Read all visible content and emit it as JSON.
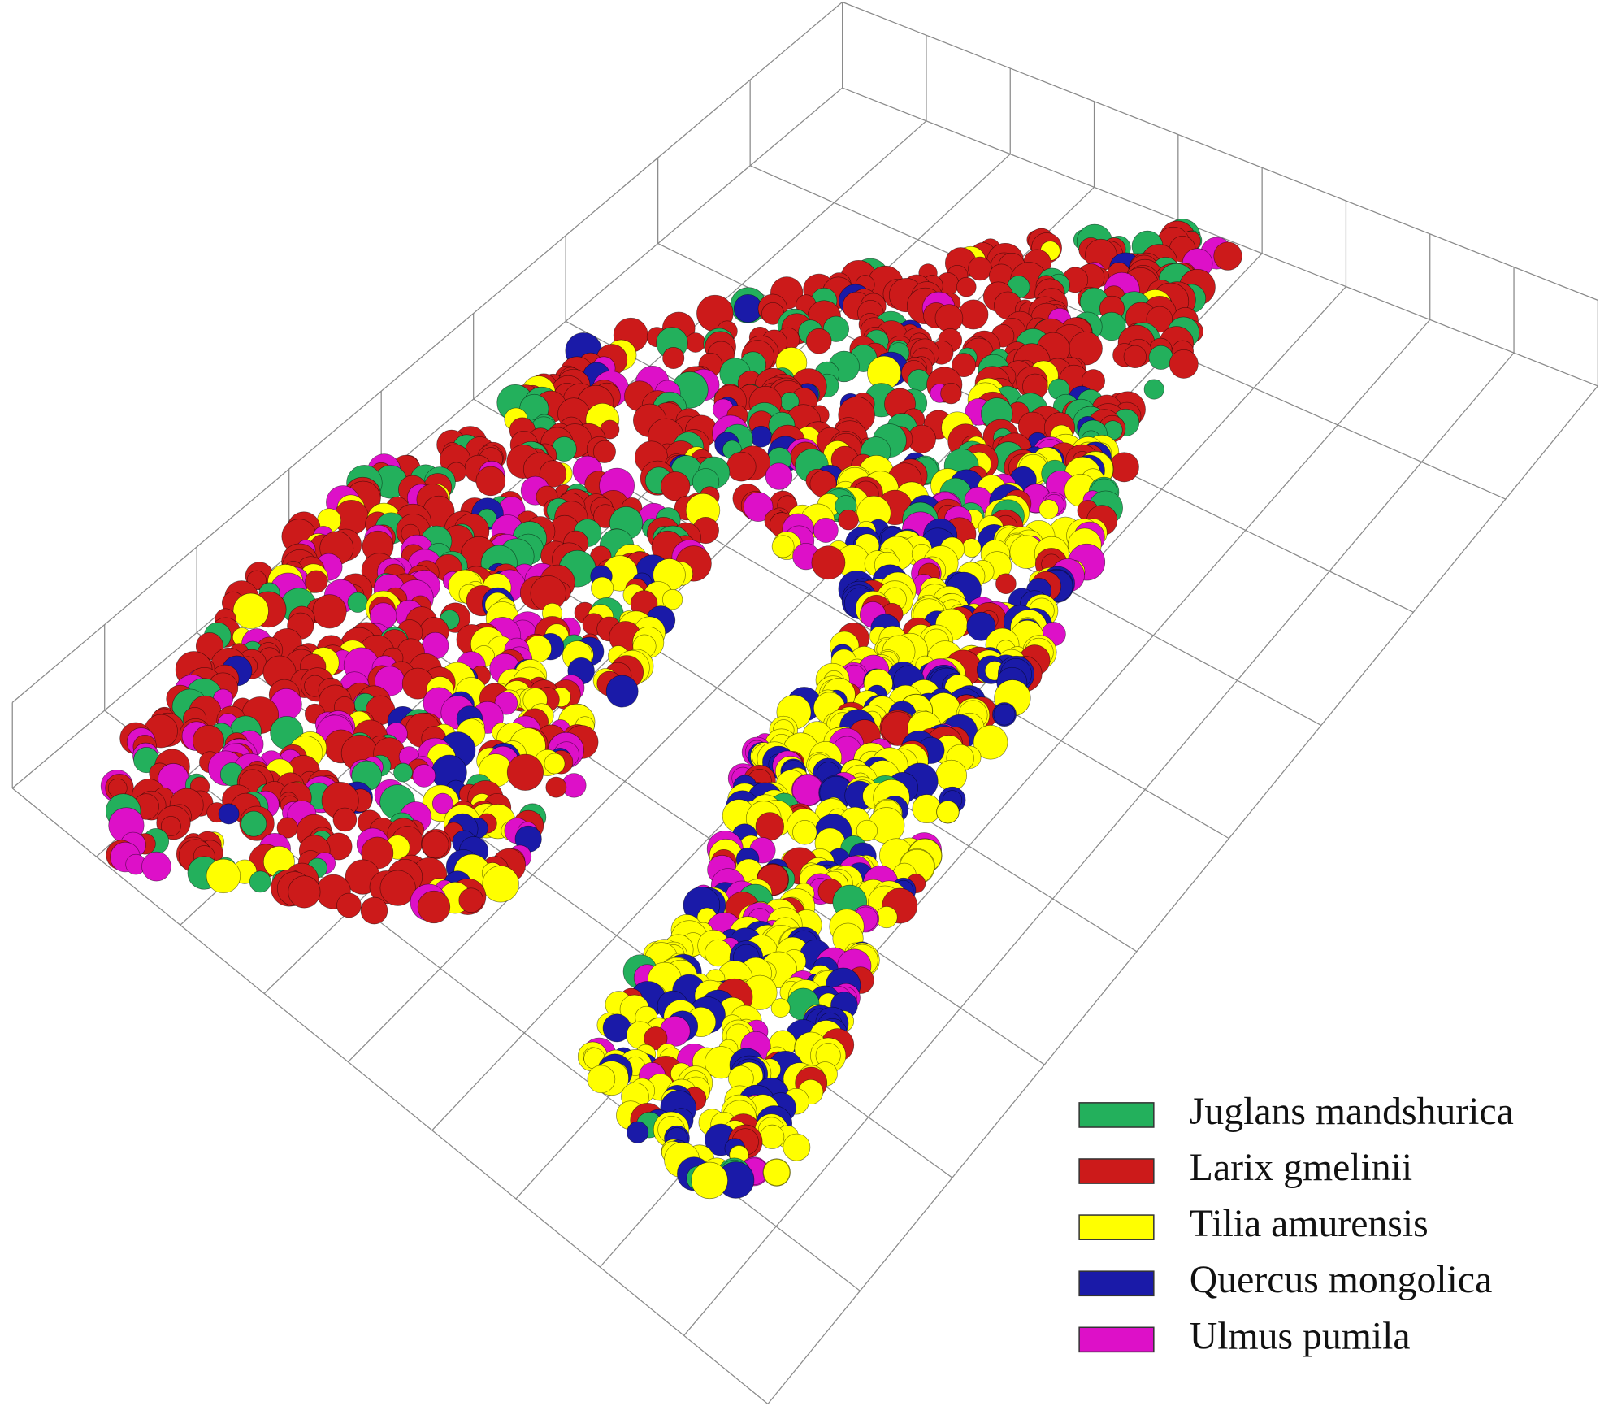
{
  "legend": {
    "items": [
      {
        "label": "Juglans mandshurica",
        "color": "#23b05c"
      },
      {
        "label": "Larix gmelinii",
        "color": "#cc1a1a"
      },
      {
        "label": "Tilia amurensis",
        "color": "#ffff00"
      },
      {
        "label": "Quercus mongolica",
        "color": "#1a1aa8"
      },
      {
        "label": "Ulmus pumila",
        "color": "#dd10c8"
      }
    ]
  }
}
